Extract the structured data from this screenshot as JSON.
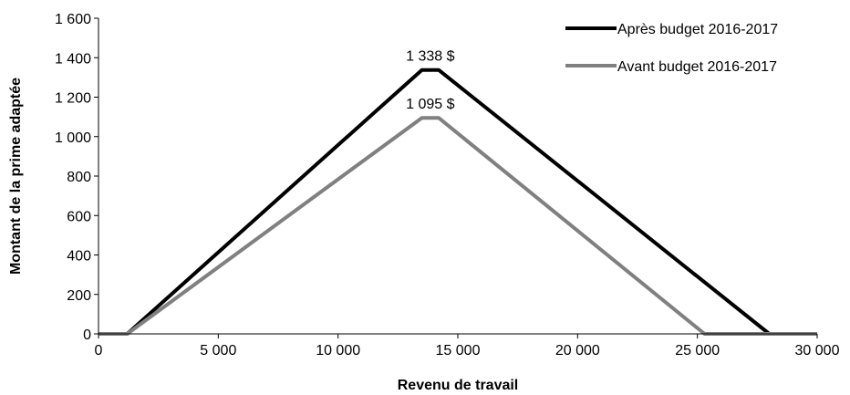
{
  "chart_data": {
    "type": "line",
    "title": "",
    "xlabel": "Revenu de travail",
    "ylabel": "Montant de la prime adaptée",
    "xlim": [
      0,
      30000
    ],
    "ylim": [
      0,
      1600
    ],
    "x_ticks": [
      0,
      5000,
      10000,
      15000,
      20000,
      25000,
      30000
    ],
    "x_tick_labels": [
      "0",
      "5 000",
      "10 000",
      "15 000",
      "20 000",
      "25 000",
      "30 000"
    ],
    "y_ticks": [
      0,
      200,
      400,
      600,
      800,
      1000,
      1200,
      1400,
      1600
    ],
    "y_tick_labels": [
      "0",
      "200",
      "400",
      "600",
      "800",
      "1 000",
      "1 200",
      "1 400",
      "1 600"
    ],
    "grid": false,
    "legend_position": "top-right",
    "series": [
      {
        "name": "Après budget 2016-2017",
        "color": "#000000",
        "points": [
          [
            0,
            0
          ],
          [
            1200,
            0
          ],
          [
            13500,
            1338
          ],
          [
            14200,
            1338
          ],
          [
            28000,
            0
          ],
          [
            30000,
            0
          ]
        ]
      },
      {
        "name": "Avant budget 2016-2017",
        "color": "#808080",
        "points": [
          [
            0,
            0
          ],
          [
            1200,
            0
          ],
          [
            13500,
            1095
          ],
          [
            14200,
            1095
          ],
          [
            25300,
            0
          ],
          [
            30000,
            0
          ]
        ]
      }
    ],
    "annotations": [
      {
        "text": "1 338 $",
        "x": 13850,
        "y": 1338,
        "series": 0
      },
      {
        "text": "1 095 $",
        "x": 13850,
        "y": 1095,
        "series": 1
      }
    ]
  }
}
